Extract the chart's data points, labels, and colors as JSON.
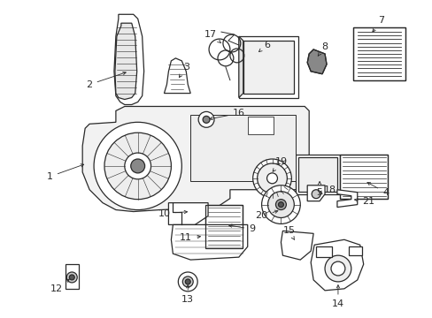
{
  "background_color": "#ffffff",
  "fig_width": 4.89,
  "fig_height": 3.6,
  "dpi": 100,
  "line_color": "#2a2a2a",
  "font_size": 8
}
